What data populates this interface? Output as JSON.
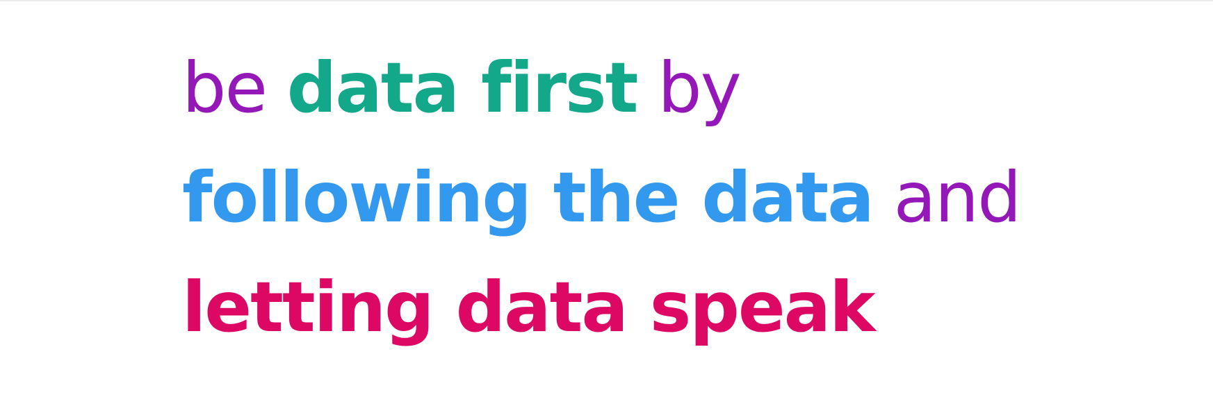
{
  "colors": {
    "purple": "#9417b8",
    "green": "#14a88a",
    "blue": "#3399ee",
    "magenta": "#dc0863",
    "background": "#ffffff"
  },
  "lines": [
    [
      {
        "text": "be",
        "weight": "normal",
        "color": "purple"
      },
      {
        "text": "data first",
        "weight": "bold",
        "color": "green"
      },
      {
        "text": "by",
        "weight": "normal",
        "color": "purple"
      }
    ],
    [
      {
        "text": "following the data",
        "weight": "bold",
        "color": "blue"
      },
      {
        "text": "and",
        "weight": "normal",
        "color": "purple"
      }
    ],
    [
      {
        "text": "letting data speak",
        "weight": "bold",
        "color": "magenta"
      }
    ]
  ]
}
